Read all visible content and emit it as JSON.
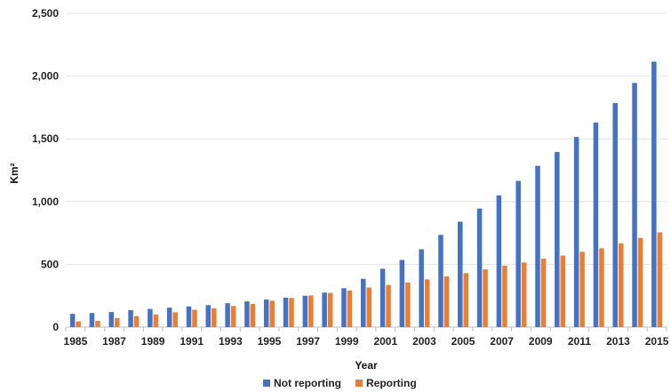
{
  "chart_data": {
    "type": "bar",
    "xlabel": "Year",
    "ylabel": "Km²",
    "ylim": [
      0,
      2500
    ],
    "yticks": [
      0,
      500,
      1000,
      1500,
      2000,
      2500
    ],
    "ytick_labels": [
      "0",
      "500",
      "1,000",
      "1,500",
      "2,000",
      "2,500"
    ],
    "grid": true,
    "legend_position": "bottom",
    "categories": [
      "1985",
      "1986",
      "1987",
      "1988",
      "1989",
      "1990",
      "1991",
      "1992",
      "1993",
      "1994",
      "1995",
      "1996",
      "1997",
      "1998",
      "1999",
      "2000",
      "2001",
      "2002",
      "2003",
      "2004",
      "2005",
      "2006",
      "2007",
      "2008",
      "2009",
      "2010",
      "2011",
      "2012",
      "2013",
      "2014",
      "2015"
    ],
    "xtick_labels": [
      "1985",
      "1987",
      "1989",
      "1991",
      "1993",
      "1995",
      "1997",
      "1999",
      "2001",
      "2003",
      "2005",
      "2007",
      "2009",
      "2011",
      "2013",
      "2015"
    ],
    "series": [
      {
        "name": "Not reporting",
        "color": "#4472C4",
        "values": [
          105,
          112,
          120,
          135,
          145,
          155,
          165,
          175,
          190,
          205,
          220,
          235,
          250,
          275,
          310,
          385,
          465,
          535,
          620,
          735,
          840,
          945,
          1050,
          1165,
          1285,
          1395,
          1515,
          1630,
          1785,
          1945,
          2115
        ]
      },
      {
        "name": "Reporting",
        "color": "#ED7D31",
        "values": [
          45,
          50,
          72,
          88,
          100,
          118,
          138,
          150,
          168,
          185,
          210,
          232,
          252,
          272,
          292,
          315,
          335,
          355,
          380,
          405,
          430,
          460,
          490,
          515,
          545,
          570,
          600,
          628,
          668,
          710,
          755
        ]
      }
    ]
  }
}
